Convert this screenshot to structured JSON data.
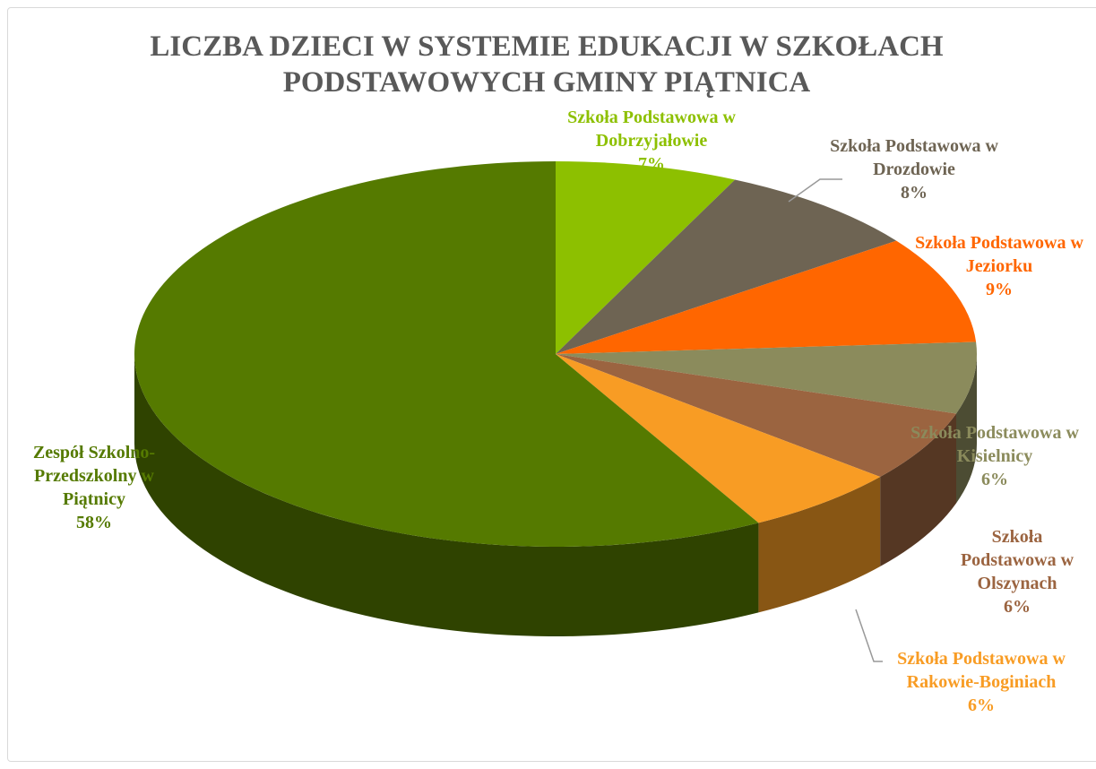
{
  "chart_data": {
    "type": "pie",
    "title": "LICZBA DZIECI W SYSTEMIE EDUKACJI W SZKOŁACH PODSTAWOWYCH GMINY PIĄTNICA",
    "categories": [
      "Szkoła Podstawowa w Dobrzyjałowie",
      "Szkoła Podstawowa w Drozdowie",
      "Szkoła Podstawowa w Jeziorku",
      "Szkoła Podstawowa w Kisielnicy",
      "Szkoła Podstawowa w Olszynach",
      "Szkoła Podstawowa w Rakowie-Boginiach",
      "Zespół Szkolno-Przedszkolny w Piątnicy"
    ],
    "values": [
      7,
      8,
      9,
      6,
      6,
      6,
      58
    ],
    "value_labels": [
      "7%",
      "8%",
      "9%",
      "6%",
      "6%",
      "6%",
      "58%"
    ],
    "colors": [
      "#8dc000",
      "#6e6453",
      "#ff6600",
      "#8b8b5c",
      "#9b6440",
      "#f89c24",
      "#557a00"
    ]
  }
}
